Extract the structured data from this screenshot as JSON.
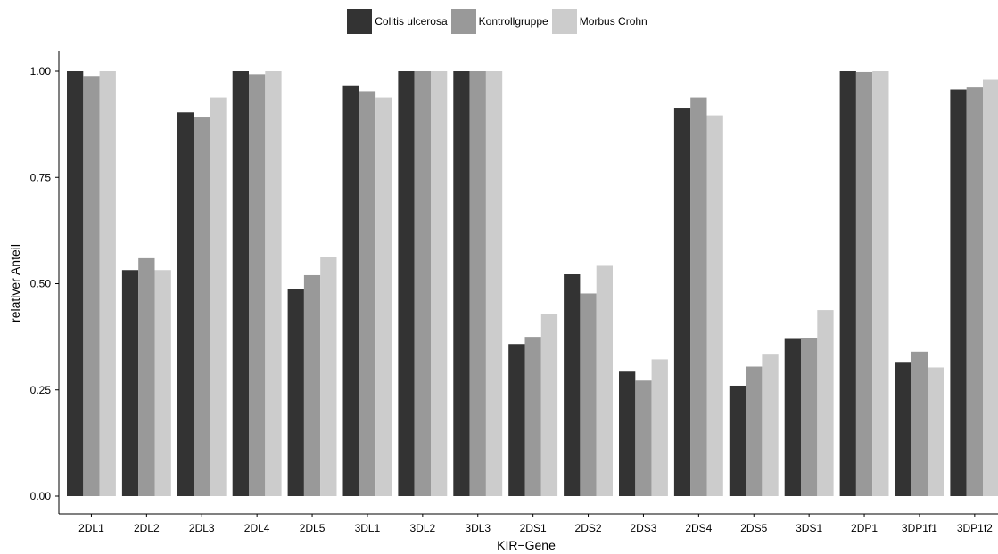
{
  "chart_data": {
    "type": "bar",
    "title": "",
    "xlabel": "KIR−Gene",
    "ylabel": "relativer Anteil",
    "ylim": [
      0,
      1.0
    ],
    "yticks": [
      "0.00",
      "0.25",
      "0.50",
      "0.75",
      "1.00"
    ],
    "grid": false,
    "legend_position": "top",
    "categories": [
      "2DL1",
      "2DL2",
      "2DL3",
      "2DL4",
      "2DL5",
      "3DL1",
      "3DL2",
      "3DL3",
      "2DS1",
      "2DS2",
      "2DS3",
      "2DS4",
      "2DS5",
      "3DS1",
      "2DP1",
      "3DP1f1",
      "3DP1f2"
    ],
    "series": [
      {
        "name": "Colitis ulcerosa",
        "color": "#333333",
        "values": [
          1.0,
          0.532,
          0.903,
          1.0,
          0.488,
          0.967,
          1.0,
          1.0,
          0.358,
          0.522,
          0.293,
          0.914,
          0.26,
          0.37,
          1.0,
          0.316,
          0.957
        ]
      },
      {
        "name": "Kontrollgruppe",
        "color": "#999999",
        "values": [
          0.989,
          0.56,
          0.893,
          0.993,
          0.52,
          0.953,
          1.0,
          1.0,
          0.375,
          0.477,
          0.272,
          0.938,
          0.305,
          0.372,
          0.998,
          0.34,
          0.962
        ]
      },
      {
        "name": "Morbus Crohn",
        "color": "#cccccc",
        "values": [
          1.0,
          0.532,
          0.938,
          1.0,
          0.563,
          0.938,
          1.0,
          1.0,
          0.428,
          0.542,
          0.322,
          0.896,
          0.333,
          0.438,
          1.0,
          0.303,
          0.98
        ]
      }
    ]
  }
}
